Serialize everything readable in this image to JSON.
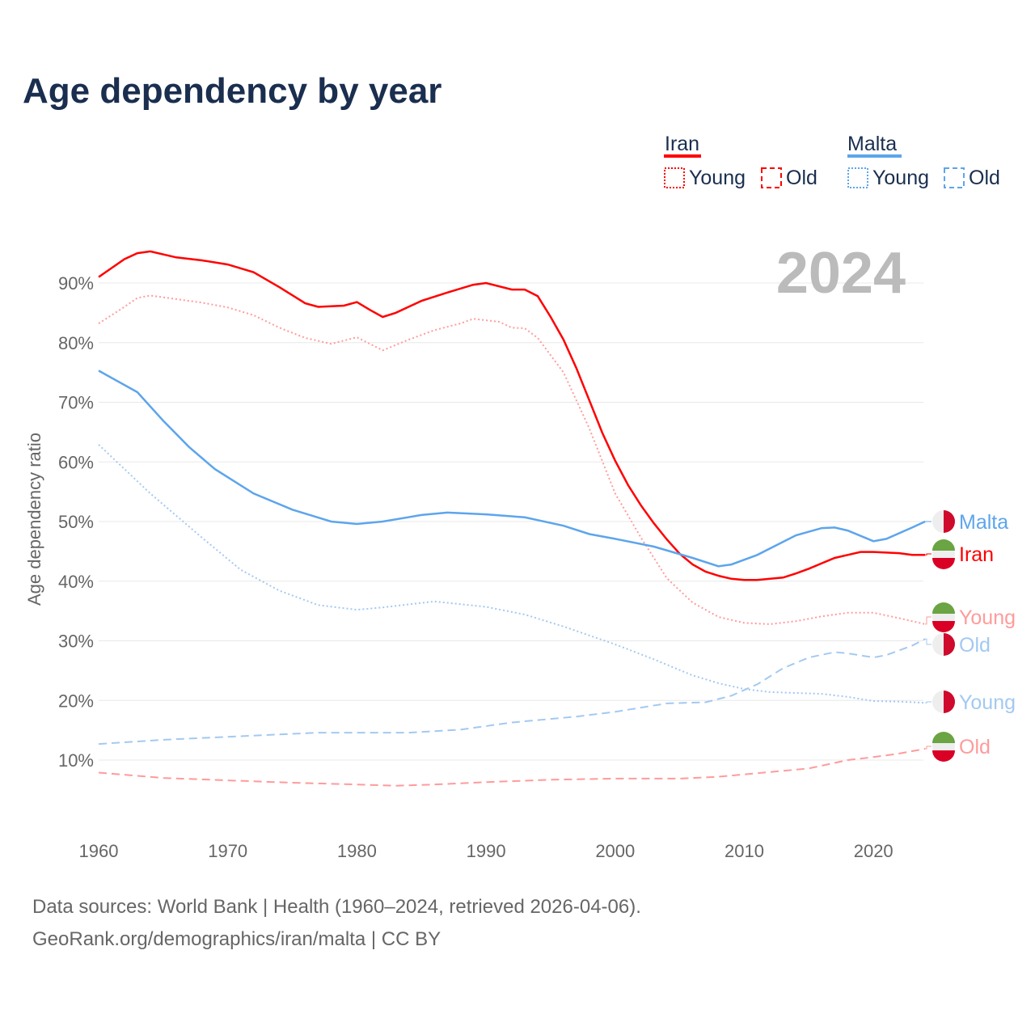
{
  "title": "Age dependency by year",
  "legend": {
    "iran": "Iran",
    "malta": "Malta",
    "young": "Young",
    "old": "Old"
  },
  "year_label": "2024",
  "footer": {
    "line1": "Data sources: World Bank | Health (1960–2024, retrieved 2026-04-06).",
    "line2": "GeoRank.org/demographics/iran/malta | CC BY"
  },
  "colors": {
    "iran": "#ff0000",
    "iran_light": "#ff9b9b",
    "malta": "#5da5ec",
    "malta_light": "#a3c9f1"
  },
  "chart_data": {
    "type": "line",
    "title": "Age dependency by year",
    "xlabel": "",
    "ylabel": "Age dependency ratio",
    "xlim": [
      1960,
      2024
    ],
    "ylim": [
      0,
      100
    ],
    "xticks": [
      "1960",
      "1970",
      "1980",
      "1990",
      "2000",
      "2010",
      "2020"
    ],
    "yticks": [
      "10%",
      "20%",
      "30%",
      "40%",
      "50%",
      "60%",
      "70%",
      "80%",
      "90%"
    ],
    "series": [
      {
        "name": "Iran",
        "label": "Iran",
        "country": "iran",
        "style": "solid",
        "color": "#ff0000",
        "x": [
          1960,
          1962,
          1963,
          1964,
          1966,
          1968,
          1970,
          1972,
          1974,
          1976,
          1977,
          1979,
          1980,
          1981,
          1982,
          1983,
          1985,
          1987,
          1989,
          1990,
          1992,
          1993,
          1994,
          1995,
          1996,
          1997,
          1998,
          1999,
          2000,
          2001,
          2002,
          2003,
          2004,
          2005,
          2006,
          2007,
          2008,
          2009,
          2010,
          2011,
          2012,
          2013,
          2014,
          2015,
          2016,
          2017,
          2018,
          2019,
          2020,
          2021,
          2022,
          2023,
          2024
        ],
        "y": [
          91.0,
          94.0,
          95.0,
          95.3,
          94.3,
          93.8,
          93.1,
          91.8,
          89.3,
          86.6,
          86.0,
          86.2,
          86.8,
          85.5,
          84.3,
          85.0,
          87.0,
          88.4,
          89.7,
          90.0,
          88.9,
          88.9,
          87.8,
          84.3,
          80.5,
          75.7,
          70.3,
          64.9,
          60.2,
          56.1,
          52.7,
          49.7,
          47.0,
          44.6,
          42.8,
          41.6,
          40.9,
          40.4,
          40.2,
          40.2,
          40.4,
          40.6,
          41.3,
          42.1,
          43.0,
          43.9,
          44.4,
          44.9,
          44.9,
          44.8,
          44.7,
          44.4,
          44.4
        ]
      },
      {
        "name": "Iran Young",
        "label": "Young",
        "country": "iran",
        "style": "dotted",
        "color": "#ff9b9b",
        "x": [
          1960,
          1962,
          1963,
          1964,
          1966,
          1968,
          1970,
          1972,
          1974,
          1976,
          1978,
          1980,
          1982,
          1984,
          1986,
          1988,
          1989,
          1991,
          1992,
          1993,
          1994,
          1996,
          1998,
          2000,
          2002,
          2004,
          2006,
          2008,
          2010,
          2012,
          2014,
          2016,
          2018,
          2020,
          2022,
          2024
        ],
        "y": [
          83.2,
          86.0,
          87.5,
          87.9,
          87.3,
          86.7,
          85.9,
          84.6,
          82.5,
          80.8,
          79.8,
          80.9,
          78.7,
          80.5,
          82.1,
          83.2,
          84.0,
          83.5,
          82.5,
          82.4,
          80.8,
          75.0,
          65.6,
          54.7,
          47.3,
          40.5,
          36.4,
          34.0,
          33.0,
          32.8,
          33.3,
          34.1,
          34.7,
          34.7,
          33.8,
          32.8
        ]
      },
      {
        "name": "Iran Old",
        "label": "Old",
        "country": "iran",
        "style": "dashed",
        "color": "#ff9b9b",
        "x": [
          1960,
          1965,
          1970,
          1975,
          1980,
          1983,
          1986,
          1990,
          1995,
          2000,
          2005,
          2008,
          2012,
          2015,
          2018,
          2020,
          2022,
          2024
        ],
        "y": [
          7.9,
          7.0,
          6.6,
          6.2,
          5.9,
          5.7,
          5.9,
          6.3,
          6.7,
          6.9,
          6.9,
          7.2,
          8.0,
          8.6,
          10.0,
          10.5,
          11.1,
          11.9
        ]
      },
      {
        "name": "Malta",
        "label": "Malta",
        "country": "malta",
        "style": "solid",
        "color": "#5da5ec",
        "x": [
          1960,
          1963,
          1965,
          1967,
          1969,
          1972,
          1975,
          1978,
          1980,
          1982,
          1985,
          1987,
          1990,
          1993,
          1996,
          1998,
          2000,
          2003,
          2006,
          2008,
          2009,
          2011,
          2013,
          2014,
          2016,
          2017,
          2018,
          2020,
          2021,
          2023,
          2024
        ],
        "y": [
          75.3,
          71.7,
          66.9,
          62.5,
          58.8,
          54.7,
          52.0,
          50.0,
          49.6,
          50.0,
          51.1,
          51.5,
          51.2,
          50.7,
          49.3,
          47.9,
          47.1,
          45.8,
          43.9,
          42.5,
          42.8,
          44.4,
          46.6,
          47.7,
          48.9,
          49.0,
          48.5,
          46.7,
          47.1,
          49.0,
          50.0
        ]
      },
      {
        "name": "Malta Young",
        "label": "Young",
        "country": "malta",
        "style": "dotted",
        "color": "#a3c9f1",
        "x": [
          1960,
          1964,
          1968,
          1971,
          1974,
          1977,
          1980,
          1982,
          1986,
          1990,
          1993,
          1996,
          2000,
          2003,
          2006,
          2008,
          2010,
          2012,
          2016,
          2018,
          2020,
          2022,
          2024
        ],
        "y": [
          62.9,
          54.7,
          47.3,
          41.9,
          38.4,
          36.0,
          35.2,
          35.6,
          36.6,
          35.7,
          34.4,
          32.4,
          29.4,
          26.9,
          24.2,
          22.9,
          21.9,
          21.4,
          21.1,
          20.6,
          19.9,
          19.8,
          19.6
        ]
      },
      {
        "name": "Malta Old",
        "label": "Old",
        "country": "malta",
        "style": "dashed",
        "color": "#a3c9f1",
        "x": [
          1960,
          1965,
          1970,
          1977,
          1984,
          1988,
          1992,
          1997,
          2000,
          2004,
          2007,
          2009,
          2011,
          2013,
          2015,
          2017,
          2018,
          2020,
          2021,
          2023,
          2024
        ],
        "y": [
          12.7,
          13.4,
          13.9,
          14.6,
          14.6,
          15.1,
          16.3,
          17.3,
          18.1,
          19.5,
          19.7,
          20.8,
          22.7,
          25.4,
          27.2,
          28.1,
          27.9,
          27.2,
          27.6,
          29.2,
          30.3
        ]
      }
    ],
    "end_labels_order": [
      "Malta",
      "Iran",
      "Iran Young",
      "Malta Old",
      "Malta Young",
      "Iran Old"
    ],
    "grid": true,
    "legend_position": "top-right"
  }
}
